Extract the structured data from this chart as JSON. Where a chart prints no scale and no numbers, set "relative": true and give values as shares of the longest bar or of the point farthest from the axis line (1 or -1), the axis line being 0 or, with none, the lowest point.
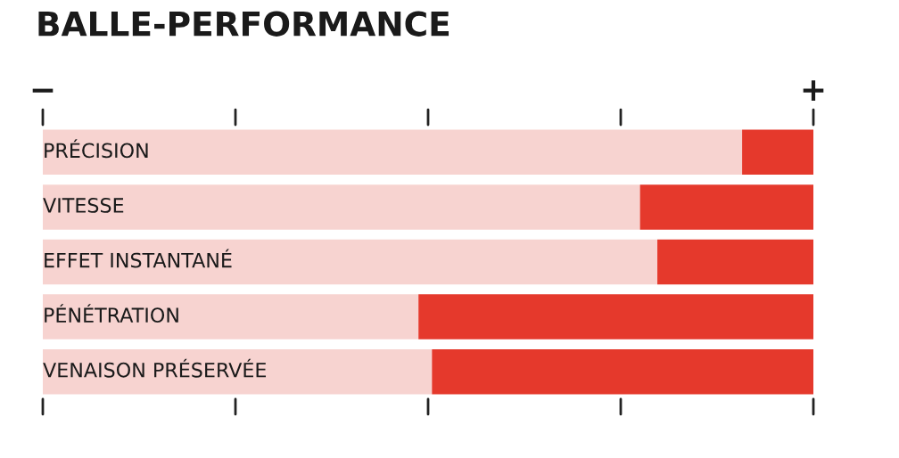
{
  "chart_data": {
    "type": "bar",
    "orientation": "horizontal",
    "stacked": true,
    "relative": true,
    "title": "BALLE-PERFORMANCE",
    "categories": [
      "PRÉCISION",
      "VITESSE",
      "EFFET INSTANTANÉ",
      "PÉNÉTRATION",
      "VENAISON PRÉSERVÉE"
    ],
    "series": [
      {
        "color": "#f7d3d0",
        "values": [
          0.9075,
          0.775,
          0.7975,
          0.4875,
          0.505
        ]
      },
      {
        "color": "#e5392c",
        "values": [
          0.0925,
          0.225,
          0.2025,
          0.5125,
          0.495
        ]
      }
    ],
    "annotations": [
      "−",
      "+"
    ],
    "legend": false
  }
}
